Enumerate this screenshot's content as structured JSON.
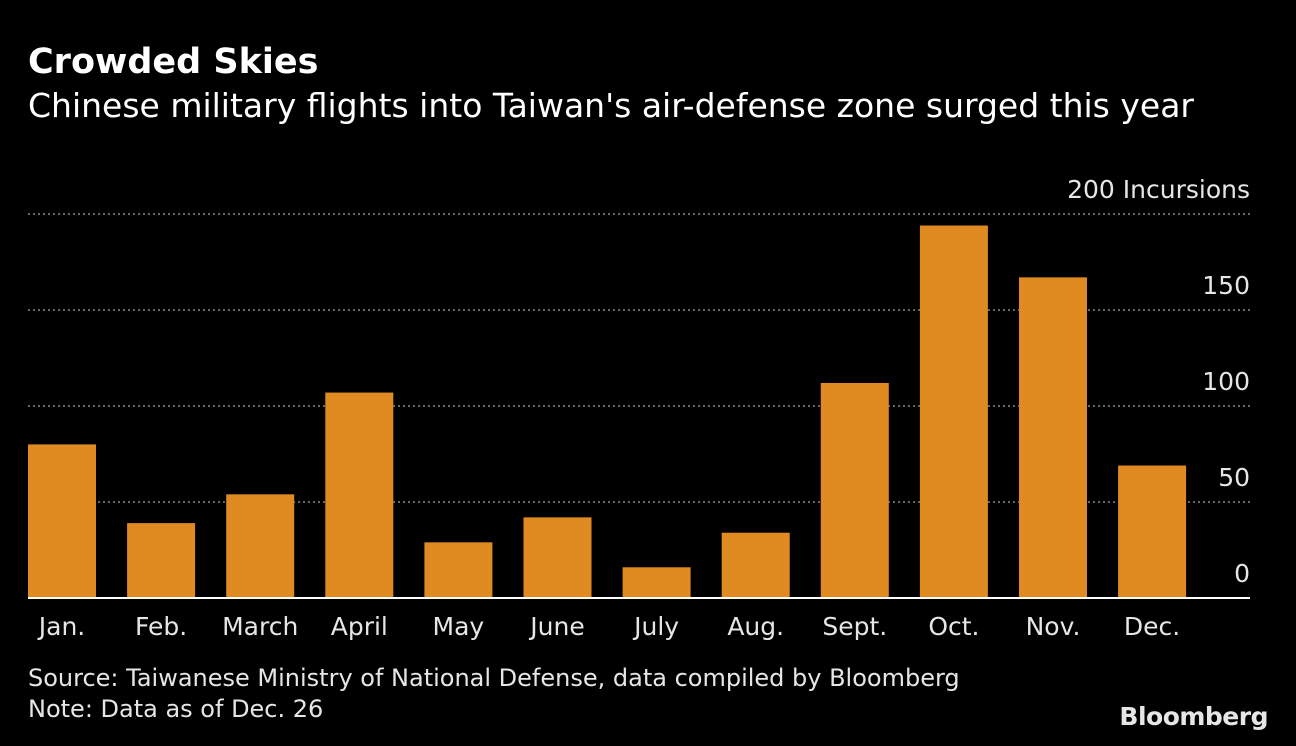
{
  "header": {
    "title": "Crowded Skies",
    "subtitle": "Chinese military flights into Taiwan's air-defense zone surged this year"
  },
  "footer": {
    "source": "Source: Taiwanese Ministry of National Defense, data compiled by Bloomberg",
    "note": "Note: Data as of Dec. 26",
    "brand": "Bloomberg"
  },
  "colors": {
    "background": "#000000",
    "bar": "#e08a22",
    "grid": "#888888",
    "text": "#e6e6e6"
  },
  "chart_data": {
    "type": "bar",
    "title": "Crowded Skies",
    "subtitle": "Chinese military flights into Taiwan's air-defense zone surged this year",
    "xlabel": "",
    "ylabel": "Incursions",
    "categories": [
      "Jan.",
      "Feb.",
      "March",
      "April",
      "May",
      "June",
      "July",
      "Aug.",
      "Sept.",
      "Oct.",
      "Nov.",
      "Dec."
    ],
    "values": [
      80,
      39,
      54,
      107,
      29,
      42,
      16,
      34,
      112,
      194,
      167,
      69
    ],
    "ylim": [
      0,
      200
    ],
    "yticks": [
      0,
      50,
      100,
      150,
      200
    ],
    "ytick_labels": [
      "0",
      "50",
      "100",
      "150",
      "200 Incursions"
    ],
    "grid": true,
    "axis_position": "right"
  }
}
